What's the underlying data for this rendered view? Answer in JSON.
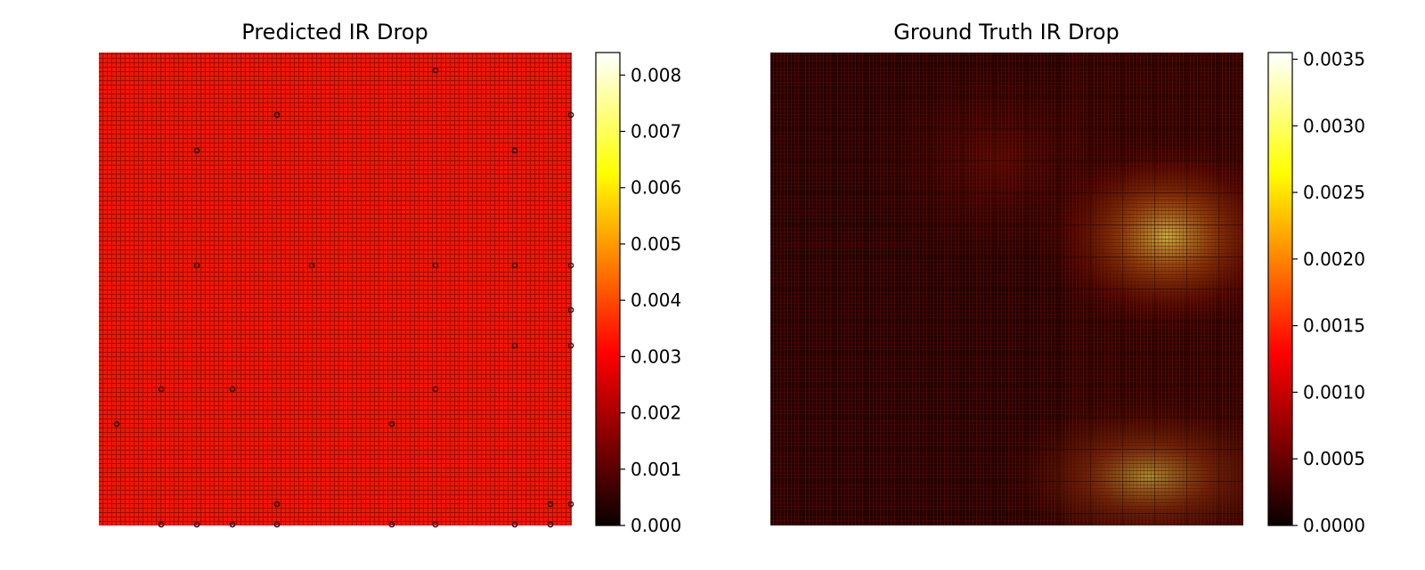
{
  "chart_data": [
    {
      "type": "heatmap",
      "title": "Predicted IR Drop",
      "colormap": "hot",
      "colorbar": {
        "range": [
          0.0,
          0.0084
        ],
        "ticks": [
          0.0,
          0.001,
          0.002,
          0.003,
          0.004,
          0.005,
          0.006,
          0.007,
          0.008
        ],
        "tick_labels": [
          "0.000",
          "0.001",
          "0.002",
          "0.003",
          "0.004",
          "0.005",
          "0.006",
          "0.007",
          "0.008"
        ]
      },
      "axes_visible": false,
      "dominant_value": 0.0031,
      "grid_texture": "fine dark grid lines over nearly uniform red field",
      "markers": "small dark speckles scattered across the map"
    },
    {
      "type": "heatmap",
      "title": "Ground Truth IR Drop",
      "colormap": "hot",
      "colorbar": {
        "range": [
          0.0,
          0.00355
        ],
        "ticks": [
          0.0,
          0.0005,
          0.001,
          0.0015,
          0.002,
          0.0025,
          0.003,
          0.0035
        ],
        "tick_labels": [
          "0.0000",
          "0.0005",
          "0.0010",
          "0.0015",
          "0.0020",
          "0.0025",
          "0.0030",
          "0.0035"
        ]
      },
      "axes_visible": false,
      "background_value": 0.0003,
      "hotspots": [
        {
          "region": "right-middle",
          "peak_value": 0.003
        },
        {
          "region": "bottom-right",
          "peak_value": 0.0026
        }
      ],
      "grid_texture": "fine grid lines over dark field"
    }
  ]
}
